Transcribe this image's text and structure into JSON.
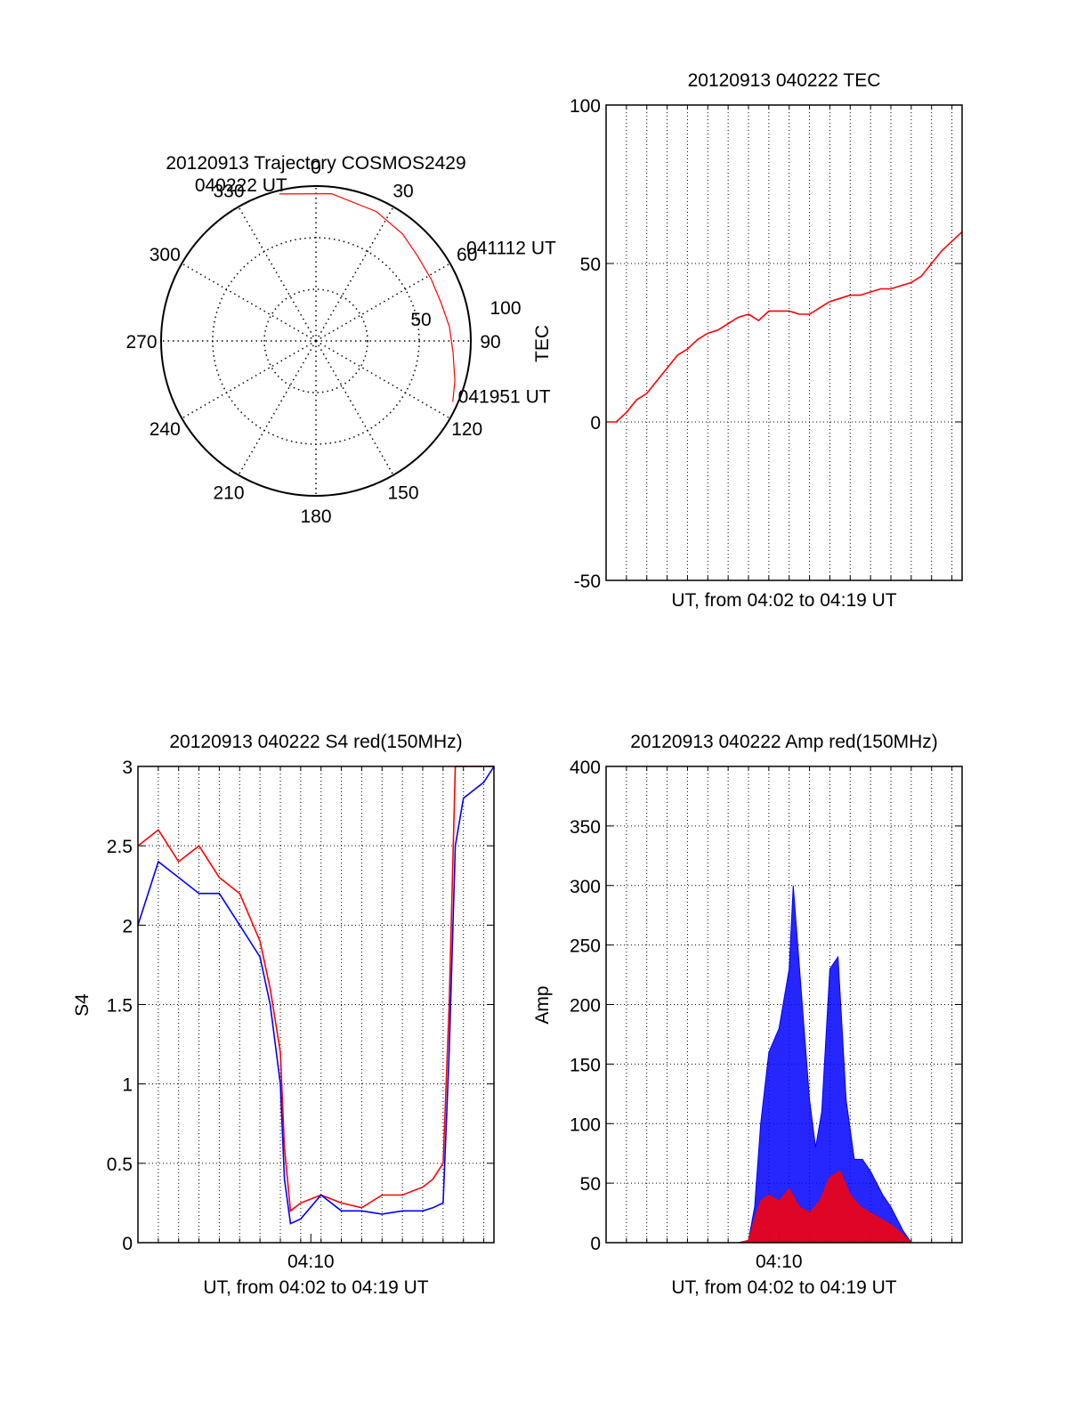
{
  "colors": {
    "series_red": "#ff0000",
    "series_blue": "#0000ff",
    "axes": "#000000",
    "grid": "#000000"
  },
  "chart_data": [
    {
      "type": "polar",
      "title": "20120913 Trajectory COSMOS2429",
      "angle_ticks": [
        "0",
        "30",
        "60",
        "90",
        "120",
        "150",
        "180",
        "210",
        "240",
        "270",
        "300",
        "330"
      ],
      "radial_ticks": [
        "50",
        "100"
      ],
      "rlim": [
        0,
        90
      ],
      "grid": true,
      "series": [
        {
          "color": "#ff0000",
          "points": [
            {
              "az": 346,
              "el": 2
            },
            {
              "az": 6,
              "el": 4
            },
            {
              "az": 25,
              "el": 7
            },
            {
              "az": 39,
              "el": 10
            },
            {
              "az": 50,
              "el": 13
            },
            {
              "az": 62,
              "el": 14
            },
            {
              "az": 73,
              "el": 14
            },
            {
              "az": 84,
              "el": 12
            },
            {
              "az": 95,
              "el": 10
            },
            {
              "az": 106,
              "el": 6
            },
            {
              "az": 114,
              "el": 3
            }
          ]
        }
      ],
      "annotations": [
        {
          "text": "040222 UT",
          "az": 346,
          "el": 2
        },
        {
          "text": "041112 UT",
          "az": 50,
          "el": 13
        },
        {
          "text": "041951 UT",
          "az": 114,
          "el": 3
        }
      ]
    },
    {
      "type": "line",
      "title": "20120913 040222 TEC",
      "xlabel": "UT, from 04:02 to 04:19 UT",
      "ylabel": "TEC",
      "xlim": [
        0,
        17.5
      ],
      "ylim": [
        -50,
        100
      ],
      "yticks": [
        -50,
        0,
        50,
        100
      ],
      "grid": true,
      "series": [
        {
          "color": "#ff0000",
          "x": [
            0,
            0.5,
            1,
            1.5,
            2,
            2.5,
            3,
            3.5,
            4,
            4.5,
            5,
            5.5,
            6,
            6.5,
            7,
            7.5,
            8,
            8.5,
            9,
            9.5,
            10,
            10.5,
            11,
            11.5,
            12,
            12.5,
            13,
            13.5,
            14,
            14.5,
            15,
            15.5,
            16,
            16.5,
            17,
            17.5
          ],
          "y": [
            0,
            0,
            3,
            7,
            9,
            13,
            17,
            21,
            23,
            26,
            28,
            29,
            31,
            33,
            34,
            32,
            35,
            35,
            35,
            34,
            34,
            36,
            38,
            39,
            40,
            40,
            41,
            42,
            42,
            43,
            44,
            46,
            50,
            54,
            57,
            60
          ]
        }
      ]
    },
    {
      "type": "line",
      "title": "20120913 040222 S4 red(150MHz)",
      "xlabel": "UT, from 04:02 to 04:19 UT",
      "ylabel": "S4",
      "xlim": [
        0,
        17.5
      ],
      "ylim": [
        0,
        3
      ],
      "yticks": [
        "0",
        "0.5",
        "1",
        "1.5",
        "2",
        "2.5",
        "3"
      ],
      "xticks": [
        {
          "x": 8.5,
          "label": "04:10"
        }
      ],
      "grid": true,
      "series": [
        {
          "color": "#ff0000",
          "x": [
            0,
            1,
            2,
            3,
            4,
            5,
            6,
            6.5,
            7,
            7.2,
            7.5,
            8,
            9,
            10,
            11,
            12,
            13,
            14,
            14.5,
            15,
            15.3,
            15.6,
            16,
            17,
            17.5
          ],
          "y": [
            2.5,
            2.6,
            2.4,
            2.5,
            2.3,
            2.2,
            1.9,
            1.6,
            1.2,
            0.6,
            0.2,
            0.25,
            0.3,
            0.25,
            0.22,
            0.3,
            0.3,
            0.35,
            0.4,
            0.5,
            1.5,
            3,
            3,
            3,
            3
          ]
        },
        {
          "color": "#0000ff",
          "x": [
            0,
            1,
            2,
            3,
            4,
            5,
            6,
            6.5,
            7,
            7.2,
            7.5,
            8,
            9,
            10,
            11,
            12,
            13,
            14,
            14.5,
            15,
            15.3,
            15.6,
            16,
            17,
            17.5
          ],
          "y": [
            2.0,
            2.4,
            2.3,
            2.2,
            2.2,
            2.0,
            1.8,
            1.5,
            1.0,
            0.4,
            0.12,
            0.15,
            0.3,
            0.2,
            0.2,
            0.18,
            0.2,
            0.2,
            0.22,
            0.25,
            1.2,
            2.5,
            2.8,
            2.9,
            3
          ]
        }
      ]
    },
    {
      "type": "area",
      "title": "20120913 040222 Amp red(150MHz)",
      "xlabel": "UT, from 04:02 to 04:19 UT",
      "ylabel": "Amp",
      "xlim": [
        0,
        17.5
      ],
      "ylim": [
        0,
        400
      ],
      "yticks": [
        "0",
        "50",
        "100",
        "150",
        "200",
        "250",
        "300",
        "350",
        "400"
      ],
      "xticks": [
        {
          "x": 8.5,
          "label": "04:10"
        }
      ],
      "grid": true,
      "series": [
        {
          "color": "#0000ff",
          "x": [
            0,
            6.5,
            7,
            7.3,
            7.6,
            8,
            8.5,
            9,
            9.2,
            9.6,
            10,
            10.3,
            10.6,
            11,
            11.4,
            11.8,
            12.2,
            12.6,
            13,
            13.6,
            14,
            14.6,
            15,
            17.5
          ],
          "y": [
            0,
            0,
            2,
            30,
            100,
            160,
            180,
            230,
            300,
            210,
            120,
            80,
            110,
            230,
            240,
            120,
            70,
            70,
            60,
            40,
            30,
            10,
            0,
            0
          ]
        },
        {
          "color": "#ff0000",
          "x": [
            0,
            6.5,
            7,
            7.3,
            7.6,
            8,
            8.5,
            9,
            9.5,
            10,
            10.5,
            11,
            11.5,
            12,
            12.5,
            13,
            13.5,
            14,
            14.5,
            15,
            17.5
          ],
          "y": [
            0,
            0,
            2,
            20,
            35,
            40,
            35,
            45,
            30,
            25,
            35,
            55,
            60,
            40,
            30,
            25,
            20,
            15,
            8,
            0,
            0
          ]
        }
      ]
    }
  ]
}
